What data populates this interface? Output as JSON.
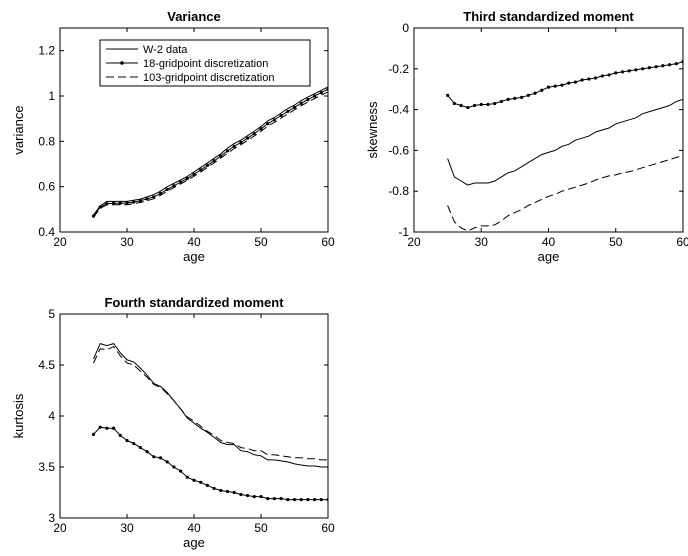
{
  "chart_data": [
    {
      "type": "line",
      "title": "Variance",
      "xlabel": "age",
      "ylabel": "variance",
      "xlim": [
        20,
        60
      ],
      "ylim": [
        0.4,
        1.3
      ],
      "xticks": [
        20,
        30,
        40,
        50,
        60
      ],
      "yticks": [
        0.4,
        0.6,
        0.8,
        1,
        1.2
      ],
      "legend": "top-left",
      "x": [
        25,
        26,
        27,
        28,
        29,
        30,
        31,
        32,
        33,
        34,
        35,
        36,
        37,
        38,
        39,
        40,
        41,
        42,
        43,
        44,
        45,
        46,
        47,
        48,
        49,
        50,
        51,
        52,
        53,
        54,
        55,
        56,
        57,
        58,
        59,
        60
      ],
      "series": [
        {
          "name": "W-2 data",
          "style": "solid",
          "values": [
            0.475,
            0.515,
            0.535,
            0.535,
            0.535,
            0.535,
            0.54,
            0.545,
            0.555,
            0.565,
            0.58,
            0.6,
            0.615,
            0.63,
            0.645,
            0.665,
            0.685,
            0.705,
            0.725,
            0.745,
            0.77,
            0.79,
            0.805,
            0.825,
            0.845,
            0.865,
            0.89,
            0.905,
            0.925,
            0.945,
            0.96,
            0.98,
            0.995,
            1.01,
            1.025,
            1.04
          ]
        },
        {
          "name": "18-gridpoint discretization",
          "style": "dot-marker",
          "values": [
            0.47,
            0.51,
            0.525,
            0.527,
            0.527,
            0.528,
            0.532,
            0.538,
            0.546,
            0.555,
            0.57,
            0.588,
            0.604,
            0.62,
            0.636,
            0.655,
            0.674,
            0.694,
            0.714,
            0.735,
            0.758,
            0.778,
            0.795,
            0.814,
            0.834,
            0.855,
            0.878,
            0.895,
            0.914,
            0.932,
            0.95,
            0.968,
            0.984,
            1.0,
            1.015,
            1.03
          ]
        },
        {
          "name": "103-gridpoint discretization",
          "style": "dashed",
          "values": [
            0.465,
            0.505,
            0.52,
            0.52,
            0.52,
            0.52,
            0.525,
            0.53,
            0.538,
            0.547,
            0.562,
            0.58,
            0.596,
            0.612,
            0.628,
            0.646,
            0.665,
            0.685,
            0.705,
            0.726,
            0.748,
            0.768,
            0.785,
            0.804,
            0.824,
            0.844,
            0.867,
            0.884,
            0.903,
            0.921,
            0.939,
            0.957,
            0.973,
            0.989,
            1.004,
            1.018
          ]
        }
      ]
    },
    {
      "type": "line",
      "title": "Third standardized moment",
      "xlabel": "age",
      "ylabel": "skewness",
      "xlim": [
        20,
        60
      ],
      "ylim": [
        -1,
        0
      ],
      "xticks": [
        20,
        30,
        40,
        50,
        60
      ],
      "yticks": [
        -1,
        -0.8,
        -0.6,
        -0.4,
        -0.2,
        0
      ],
      "x": [
        25,
        26,
        27,
        28,
        29,
        30,
        31,
        32,
        33,
        34,
        35,
        36,
        37,
        38,
        39,
        40,
        41,
        42,
        43,
        44,
        45,
        46,
        47,
        48,
        49,
        50,
        51,
        52,
        53,
        54,
        55,
        56,
        57,
        58,
        59,
        60
      ],
      "series": [
        {
          "name": "W-2 data",
          "style": "solid",
          "values": [
            -0.64,
            -0.73,
            -0.75,
            -0.77,
            -0.76,
            -0.76,
            -0.76,
            -0.75,
            -0.73,
            -0.71,
            -0.7,
            -0.68,
            -0.66,
            -0.64,
            -0.62,
            -0.61,
            -0.6,
            -0.58,
            -0.57,
            -0.55,
            -0.54,
            -0.53,
            -0.51,
            -0.5,
            -0.49,
            -0.47,
            -0.46,
            -0.45,
            -0.44,
            -0.42,
            -0.41,
            -0.4,
            -0.39,
            -0.38,
            -0.36,
            -0.35
          ]
        },
        {
          "name": "18-gridpoint discretization",
          "style": "dot-marker",
          "values": [
            -0.33,
            -0.37,
            -0.38,
            -0.39,
            -0.38,
            -0.375,
            -0.375,
            -0.37,
            -0.36,
            -0.35,
            -0.345,
            -0.34,
            -0.33,
            -0.32,
            -0.305,
            -0.29,
            -0.285,
            -0.28,
            -0.27,
            -0.265,
            -0.255,
            -0.25,
            -0.245,
            -0.235,
            -0.23,
            -0.22,
            -0.215,
            -0.21,
            -0.205,
            -0.2,
            -0.195,
            -0.19,
            -0.185,
            -0.18,
            -0.175,
            -0.165
          ]
        },
        {
          "name": "103-gridpoint discretization",
          "style": "dashed",
          "values": [
            -0.87,
            -0.95,
            -0.98,
            -0.995,
            -0.98,
            -0.97,
            -0.97,
            -0.965,
            -0.945,
            -0.92,
            -0.905,
            -0.89,
            -0.87,
            -0.855,
            -0.84,
            -0.825,
            -0.815,
            -0.8,
            -0.79,
            -0.78,
            -0.77,
            -0.76,
            -0.745,
            -0.735,
            -0.725,
            -0.72,
            -0.71,
            -0.705,
            -0.695,
            -0.685,
            -0.675,
            -0.665,
            -0.655,
            -0.645,
            -0.635,
            -0.625
          ]
        }
      ]
    },
    {
      "type": "line",
      "title": "Fourth standardized moment",
      "xlabel": "age",
      "ylabel": "kurtosis",
      "xlim": [
        20,
        60
      ],
      "ylim": [
        3,
        5
      ],
      "xticks": [
        20,
        30,
        40,
        50,
        60
      ],
      "yticks": [
        3,
        3.5,
        4,
        4.5,
        5
      ],
      "x": [
        25,
        26,
        27,
        28,
        29,
        30,
        31,
        32,
        33,
        34,
        35,
        36,
        37,
        38,
        39,
        40,
        41,
        42,
        43,
        44,
        45,
        46,
        47,
        48,
        49,
        50,
        51,
        52,
        53,
        54,
        55,
        56,
        57,
        58,
        59,
        60
      ],
      "series": [
        {
          "name": "W-2 data",
          "style": "solid",
          "values": [
            4.56,
            4.71,
            4.69,
            4.71,
            4.62,
            4.55,
            4.53,
            4.47,
            4.4,
            4.32,
            4.29,
            4.23,
            4.15,
            4.07,
            3.98,
            3.93,
            3.88,
            3.84,
            3.79,
            3.74,
            3.72,
            3.72,
            3.66,
            3.65,
            3.62,
            3.61,
            3.57,
            3.57,
            3.56,
            3.55,
            3.53,
            3.52,
            3.51,
            3.51,
            3.5,
            3.5
          ]
        },
        {
          "name": "18-gridpoint discretization",
          "style": "dot-marker",
          "values": [
            3.82,
            3.89,
            3.88,
            3.88,
            3.81,
            3.76,
            3.73,
            3.69,
            3.65,
            3.6,
            3.59,
            3.55,
            3.5,
            3.46,
            3.4,
            3.37,
            3.35,
            3.32,
            3.29,
            3.27,
            3.26,
            3.25,
            3.23,
            3.22,
            3.21,
            3.21,
            3.19,
            3.19,
            3.19,
            3.18,
            3.18,
            3.18,
            3.18,
            3.18,
            3.18,
            3.18
          ]
        },
        {
          "name": "103-gridpoint discretization",
          "style": "dashed",
          "values": [
            4.52,
            4.66,
            4.65,
            4.68,
            4.59,
            4.52,
            4.5,
            4.44,
            4.38,
            4.31,
            4.28,
            4.22,
            4.15,
            4.07,
            3.99,
            3.95,
            3.9,
            3.85,
            3.81,
            3.76,
            3.74,
            3.73,
            3.69,
            3.68,
            3.66,
            3.66,
            3.62,
            3.62,
            3.61,
            3.6,
            3.59,
            3.59,
            3.58,
            3.58,
            3.57,
            3.57
          ]
        }
      ]
    }
  ]
}
